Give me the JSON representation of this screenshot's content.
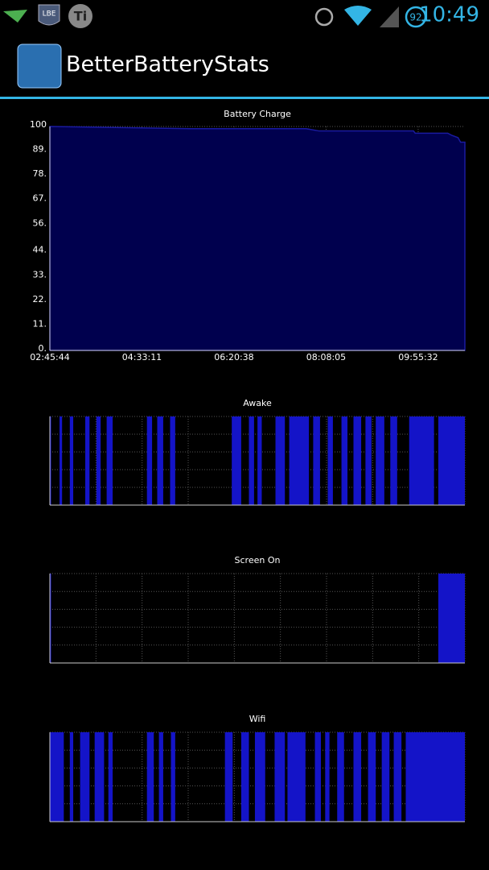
{
  "status_bar": {
    "icons": [
      "LBE",
      "Ti"
    ],
    "battery": "92",
    "clock": "10:49"
  },
  "app": {
    "title": "BetterBatteryStats"
  },
  "chart_data": [
    {
      "type": "area",
      "title": "Battery Charge",
      "x": [
        "02:45:44",
        "05:30:00",
        "07:45:00",
        "08:00:00",
        "09:50:00",
        "09:52:00",
        "10:30:00",
        "10:35:00",
        "10:42:00",
        "10:45:00",
        "10:50:00"
      ],
      "values": [
        100,
        99,
        99,
        98,
        98,
        97,
        97,
        96,
        95,
        93,
        93
      ],
      "color": "#1a1aa0",
      "xlim": [
        "02:45:44",
        "10:50:00"
      ],
      "ylim": [
        0,
        100
      ],
      "xticks": [
        "02:45:44",
        "04:33:11",
        "06:20:38",
        "08:08:05",
        "09:55:32"
      ],
      "yticks": [
        {
          "value": 0,
          "label": "0."
        },
        {
          "value": 11,
          "label": "11."
        },
        {
          "value": 22,
          "label": "22."
        },
        {
          "value": 33,
          "label": "33."
        },
        {
          "value": 44,
          "label": "44."
        },
        {
          "value": 56,
          "label": "56."
        },
        {
          "value": 67,
          "label": "67."
        },
        {
          "value": 78,
          "label": "78."
        },
        {
          "value": 89,
          "label": "89."
        },
        100
      ],
      "grid": true
    },
    {
      "type": "timeline",
      "title": "Awake",
      "color": "#1414c8",
      "xlim": [
        "02:45:44",
        "10:50:00"
      ],
      "grid": true,
      "intervals": [
        [
          "02:45:44",
          "02:47"
        ],
        [
          "02:57",
          "03:00"
        ],
        [
          "03:09",
          "03:13"
        ],
        [
          "03:27",
          "03:32"
        ],
        [
          "03:40",
          "03:45"
        ],
        [
          "03:52",
          "03:59"
        ],
        [
          "04:39",
          "04:45"
        ],
        [
          "04:51",
          "04:58"
        ],
        [
          "05:06",
          "05:12"
        ],
        [
          "06:18",
          "06:29"
        ],
        [
          "06:38",
          "06:44"
        ],
        [
          "06:48",
          "06:53"
        ],
        [
          "07:09",
          "07:20"
        ],
        [
          "07:25",
          "07:48"
        ],
        [
          "07:53",
          "08:01"
        ],
        [
          "08:10",
          "08:16"
        ],
        [
          "08:26",
          "08:33"
        ],
        [
          "08:40",
          "08:49"
        ],
        [
          "08:54",
          "09:01"
        ],
        [
          "09:06",
          "09:16"
        ],
        [
          "09:23",
          "09:31"
        ],
        [
          "09:45",
          "10:14"
        ],
        [
          "10:19",
          "10:50"
        ]
      ]
    },
    {
      "type": "timeline",
      "title": "Screen On",
      "color": "#1414c8",
      "xlim": [
        "02:45:44",
        "10:50:00"
      ],
      "grid": true,
      "intervals": [
        [
          "02:45:44",
          "02:47"
        ],
        [
          "10:19",
          "10:50"
        ]
      ]
    },
    {
      "type": "timeline",
      "title": "Wifi",
      "color": "#1414c8",
      "xlim": [
        "02:45:44",
        "10:50:00"
      ],
      "grid": true,
      "intervals": [
        [
          "02:45:44",
          "03:02"
        ],
        [
          "03:09",
          "03:13"
        ],
        [
          "03:21",
          "03:32"
        ],
        [
          "03:38",
          "03:49"
        ],
        [
          "03:54",
          "03:59"
        ],
        [
          "04:39",
          "04:47"
        ],
        [
          "04:53",
          "04:58"
        ],
        [
          "05:07",
          "05:12"
        ],
        [
          "06:10",
          "06:19"
        ],
        [
          "06:29",
          "06:38"
        ],
        [
          "06:45",
          "06:57"
        ],
        [
          "07:08",
          "07:20"
        ],
        [
          "07:23",
          "07:44"
        ],
        [
          "07:55",
          "08:02"
        ],
        [
          "08:07",
          "08:12"
        ],
        [
          "08:21",
          "08:29"
        ],
        [
          "08:40",
          "08:49"
        ],
        [
          "08:57",
          "09:06"
        ],
        [
          "09:13",
          "09:22"
        ],
        [
          "09:27",
          "09:36"
        ],
        [
          "09:41",
          "10:50"
        ]
      ]
    }
  ]
}
